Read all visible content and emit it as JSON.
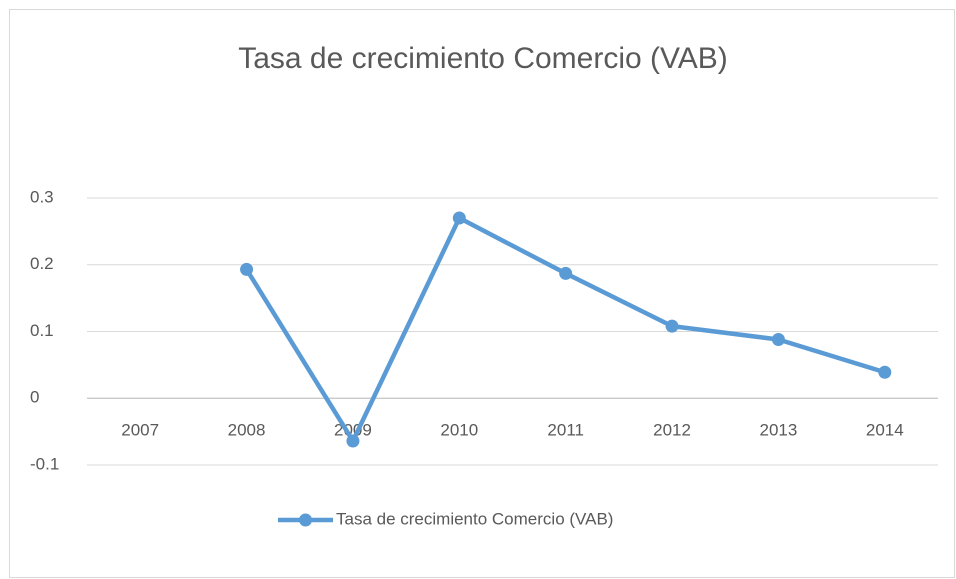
{
  "chart_data": {
    "type": "line",
    "title": "Tasa de crecimiento Comercio (VAB)",
    "categories": [
      "2007",
      "2008",
      "2009",
      "2010",
      "2011",
      "2012",
      "2013",
      "2014"
    ],
    "series": [
      {
        "name": "Tasa de crecimiento Comercio (VAB)",
        "color": "#5b9bd5",
        "values": [
          null,
          0.193,
          -0.064,
          0.27,
          0.187,
          0.108,
          0.088,
          0.039
        ]
      }
    ],
    "ylim": [
      -0.1,
      0.3
    ],
    "yticks": [
      -0.1,
      0,
      0.1,
      0.2,
      0.3
    ],
    "grid": true,
    "legend": "bottom"
  }
}
